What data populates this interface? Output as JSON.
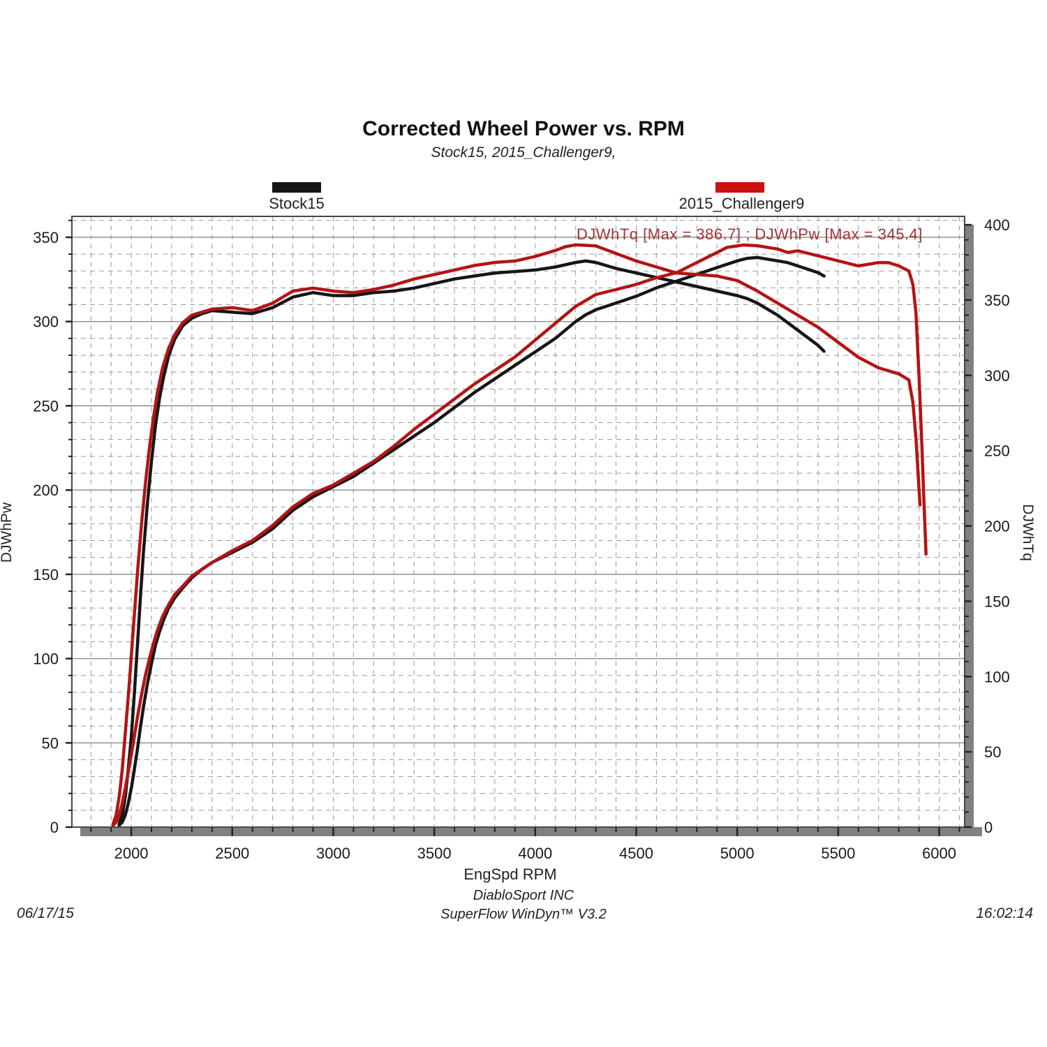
{
  "header": {
    "title": "Corrected Wheel Power vs. RPM",
    "subtitle": "Stock15, 2015_Challenger9,"
  },
  "legend": [
    {
      "label": "Stock15",
      "color": "#161616"
    },
    {
      "label": "2015_Challenger9",
      "color": "#cc1111"
    }
  ],
  "annotation": {
    "text": "DJWhTq [Max = 386.7] ; DJWhPw [Max = 345.4]",
    "color": "#a23535"
  },
  "footer": {
    "company": "DiabloSport INC",
    "software": "SuperFlow WinDyn™ V3.2",
    "date": "06/17/15",
    "time": "16:02:14"
  },
  "chart_data": {
    "type": "line",
    "title": "Corrected Wheel Power vs. RPM",
    "subtitle": "Stock15, 2015_Challenger9,",
    "xlabel": "EngSpd RPM",
    "ylabel_left": "DJWhPw",
    "ylabel_right": "DJWhTq",
    "xlim": [
      1706,
      6126
    ],
    "ylim_left": [
      0,
      362.4
    ],
    "ylim_right": [
      0,
      405.6
    ],
    "x_major_ticks": [
      2000,
      2500,
      3000,
      3500,
      4000,
      4500,
      5000,
      5500,
      6000
    ],
    "x_minor_step": 100,
    "left_major_ticks": [
      0,
      50,
      100,
      150,
      200,
      250,
      300,
      350
    ],
    "left_minor_step": 10,
    "right_major_ticks": [
      0,
      50,
      100,
      150,
      200,
      250,
      300,
      350,
      400
    ],
    "right_minor_step": 10,
    "grid": "horizontal majors solid, all minors and verticals dashed",
    "legend_position": "top",
    "colors": {
      "grid_minor": "#9a9a9a",
      "grid_major": "#8a8a8a",
      "border": "#474747",
      "shadow": "#808080",
      "tick": "#222222"
    },
    "series": [
      {
        "name": "Stock15 DJWhTq",
        "run": "Stock15",
        "channel": "DJWhTq",
        "axis": "right",
        "color": "#161616",
        "points": [
          [
            1940,
            2
          ],
          [
            1955,
            8
          ],
          [
            1970,
            20
          ],
          [
            1985,
            38
          ],
          [
            2000,
            60
          ],
          [
            2015,
            88
          ],
          [
            2030,
            120
          ],
          [
            2045,
            152
          ],
          [
            2060,
            182
          ],
          [
            2080,
            215
          ],
          [
            2100,
            243
          ],
          [
            2120,
            267
          ],
          [
            2140,
            285
          ],
          [
            2160,
            299
          ],
          [
            2185,
            313
          ],
          [
            2215,
            324
          ],
          [
            2255,
            333
          ],
          [
            2300,
            338
          ],
          [
            2350,
            341
          ],
          [
            2400,
            343
          ],
          [
            2500,
            342
          ],
          [
            2600,
            341
          ],
          [
            2700,
            345
          ],
          [
            2800,
            352
          ],
          [
            2900,
            355
          ],
          [
            3000,
            353
          ],
          [
            3100,
            353
          ],
          [
            3200,
            355
          ],
          [
            3300,
            356
          ],
          [
            3400,
            358
          ],
          [
            3500,
            361
          ],
          [
            3600,
            364
          ],
          [
            3700,
            366
          ],
          [
            3800,
            368
          ],
          [
            3900,
            369
          ],
          [
            4000,
            370
          ],
          [
            4100,
            372
          ],
          [
            4200,
            375
          ],
          [
            4250,
            376
          ],
          [
            4300,
            375
          ],
          [
            4400,
            371
          ],
          [
            4500,
            368
          ],
          [
            4600,
            365
          ],
          [
            4700,
            362
          ],
          [
            4800,
            359
          ],
          [
            4900,
            356
          ],
          [
            5000,
            353
          ],
          [
            5050,
            351
          ],
          [
            5100,
            348
          ],
          [
            5150,
            344
          ],
          [
            5200,
            340
          ],
          [
            5250,
            335
          ],
          [
            5300,
            330
          ],
          [
            5350,
            325
          ],
          [
            5400,
            320
          ],
          [
            5430,
            316
          ]
        ]
      },
      {
        "name": "Stock15 DJWhPw",
        "run": "Stock15",
        "channel": "DJWhPw",
        "axis": "left",
        "color": "#161616",
        "points": [
          [
            1940,
            1
          ],
          [
            1955,
            3
          ],
          [
            1970,
            7
          ],
          [
            1985,
            14
          ],
          [
            2000,
            23
          ],
          [
            2015,
            34
          ],
          [
            2030,
            46
          ],
          [
            2045,
            59
          ],
          [
            2060,
            71
          ],
          [
            2080,
            85
          ],
          [
            2100,
            97
          ],
          [
            2120,
            108
          ],
          [
            2140,
            116
          ],
          [
            2160,
            123
          ],
          [
            2185,
            130
          ],
          [
            2215,
            136
          ],
          [
            2255,
            142
          ],
          [
            2300,
            148
          ],
          [
            2350,
            153
          ],
          [
            2400,
            157
          ],
          [
            2500,
            163
          ],
          [
            2600,
            169
          ],
          [
            2700,
            177
          ],
          [
            2800,
            188
          ],
          [
            2900,
            196
          ],
          [
            3000,
            202
          ],
          [
            3100,
            208
          ],
          [
            3200,
            216
          ],
          [
            3300,
            224
          ],
          [
            3400,
            232
          ],
          [
            3500,
            240
          ],
          [
            3600,
            249
          ],
          [
            3700,
            258
          ],
          [
            3800,
            266
          ],
          [
            3900,
            274
          ],
          [
            4000,
            282
          ],
          [
            4100,
            290
          ],
          [
            4200,
            300
          ],
          [
            4250,
            304
          ],
          [
            4300,
            307
          ],
          [
            4400,
            311
          ],
          [
            4500,
            315
          ],
          [
            4600,
            320
          ],
          [
            4700,
            324
          ],
          [
            4800,
            328
          ],
          [
            4900,
            332
          ],
          [
            5000,
            336
          ],
          [
            5050,
            337.5
          ],
          [
            5100,
            338
          ],
          [
            5150,
            337
          ],
          [
            5200,
            336
          ],
          [
            5250,
            335
          ],
          [
            5300,
            333
          ],
          [
            5350,
            331
          ],
          [
            5400,
            329
          ],
          [
            5430,
            327
          ]
        ]
      },
      {
        "name": "2015_Challenger9 DJWhTq",
        "run": "2015_Challenger9",
        "channel": "DJWhTq",
        "axis": "right",
        "color": "#b41414",
        "max": 386.7,
        "points": [
          [
            1910,
            2
          ],
          [
            1925,
            8
          ],
          [
            1940,
            20
          ],
          [
            1955,
            38
          ],
          [
            1970,
            62
          ],
          [
            1990,
            95
          ],
          [
            2010,
            132
          ],
          [
            2030,
            168
          ],
          [
            2050,
            200
          ],
          [
            2070,
            228
          ],
          [
            2090,
            252
          ],
          [
            2110,
            272
          ],
          [
            2130,
            289
          ],
          [
            2155,
            305
          ],
          [
            2185,
            318
          ],
          [
            2215,
            327
          ],
          [
            2255,
            335
          ],
          [
            2300,
            340
          ],
          [
            2350,
            342
          ],
          [
            2400,
            344
          ],
          [
            2500,
            345
          ],
          [
            2600,
            343
          ],
          [
            2700,
            348
          ],
          [
            2800,
            356
          ],
          [
            2900,
            358
          ],
          [
            3000,
            356
          ],
          [
            3100,
            355
          ],
          [
            3200,
            357
          ],
          [
            3300,
            360
          ],
          [
            3400,
            364
          ],
          [
            3500,
            367
          ],
          [
            3600,
            370
          ],
          [
            3700,
            373
          ],
          [
            3800,
            375
          ],
          [
            3900,
            376
          ],
          [
            4000,
            379
          ],
          [
            4100,
            383
          ],
          [
            4150,
            385.5
          ],
          [
            4200,
            386.7
          ],
          [
            4300,
            386
          ],
          [
            4400,
            381
          ],
          [
            4500,
            376
          ],
          [
            4600,
            372
          ],
          [
            4700,
            368
          ],
          [
            4800,
            367
          ],
          [
            4900,
            366
          ],
          [
            5000,
            363
          ],
          [
            5100,
            356
          ],
          [
            5200,
            348
          ],
          [
            5300,
            340
          ],
          [
            5400,
            332
          ],
          [
            5500,
            322
          ],
          [
            5600,
            312
          ],
          [
            5700,
            305
          ],
          [
            5800,
            301
          ],
          [
            5850,
            297
          ],
          [
            5870,
            282
          ],
          [
            5885,
            258
          ],
          [
            5895,
            236
          ],
          [
            5905,
            214
          ]
        ]
      },
      {
        "name": "2015_Challenger9 DJWhPw",
        "run": "2015_Challenger9",
        "channel": "DJWhPw",
        "axis": "left",
        "color": "#b41414",
        "max": 345.4,
        "points": [
          [
            1910,
            1
          ],
          [
            1925,
            3
          ],
          [
            1940,
            7
          ],
          [
            1955,
            14
          ],
          [
            1970,
            23
          ],
          [
            1990,
            36
          ],
          [
            2010,
            50
          ],
          [
            2030,
            65
          ],
          [
            2050,
            78
          ],
          [
            2070,
            90
          ],
          [
            2090,
            100
          ],
          [
            2110,
            109
          ],
          [
            2130,
            117
          ],
          [
            2155,
            125
          ],
          [
            2185,
            132
          ],
          [
            2215,
            138
          ],
          [
            2255,
            143
          ],
          [
            2300,
            149
          ],
          [
            2350,
            153
          ],
          [
            2400,
            157
          ],
          [
            2500,
            164
          ],
          [
            2600,
            170
          ],
          [
            2700,
            179
          ],
          [
            2800,
            190
          ],
          [
            2900,
            198
          ],
          [
            3000,
            203
          ],
          [
            3100,
            210
          ],
          [
            3200,
            217
          ],
          [
            3300,
            226
          ],
          [
            3400,
            236
          ],
          [
            3500,
            245
          ],
          [
            3600,
            254
          ],
          [
            3700,
            263
          ],
          [
            3800,
            271
          ],
          [
            3900,
            279
          ],
          [
            4000,
            289
          ],
          [
            4100,
            299
          ],
          [
            4200,
            309
          ],
          [
            4300,
            316
          ],
          [
            4400,
            319
          ],
          [
            4500,
            322
          ],
          [
            4600,
            326
          ],
          [
            4700,
            329
          ],
          [
            4800,
            335
          ],
          [
            4900,
            341
          ],
          [
            4950,
            344
          ],
          [
            5030,
            345.4
          ],
          [
            5100,
            345
          ],
          [
            5200,
            343
          ],
          [
            5250,
            341
          ],
          [
            5300,
            342
          ],
          [
            5400,
            339
          ],
          [
            5500,
            336
          ],
          [
            5600,
            333
          ],
          [
            5700,
            335
          ],
          [
            5750,
            335
          ],
          [
            5800,
            333
          ],
          [
            5850,
            330
          ],
          [
            5870,
            322
          ],
          [
            5885,
            305
          ],
          [
            5900,
            268
          ],
          [
            5915,
            225
          ],
          [
            5925,
            192
          ],
          [
            5935,
            162
          ]
        ]
      }
    ]
  }
}
